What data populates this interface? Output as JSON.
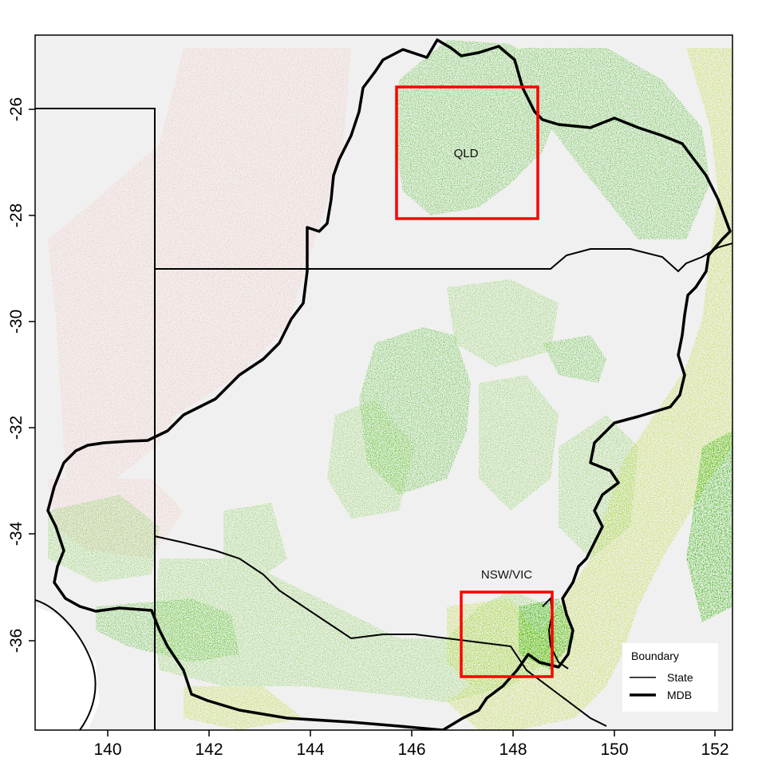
{
  "map": {
    "x_ticks": [
      "140",
      "142",
      "144",
      "146",
      "148",
      "150",
      "152"
    ],
    "y_ticks": [
      "-26",
      "-28",
      "-30",
      "-32",
      "-34",
      "-36"
    ],
    "regions": [
      {
        "label": "QLD"
      },
      {
        "label": "NSW/VIC"
      }
    ],
    "legend": {
      "title": "Boundary",
      "items": [
        {
          "label": "State"
        },
        {
          "label": "MDB"
        }
      ]
    },
    "colors": {
      "background": "#f1f0f0",
      "arid": "#f0cdc6",
      "veg_light": "#5fc81f",
      "veg_dark": "#2db300",
      "veg_yellow": "#a9d600",
      "boundary": "#000000",
      "study_area": "#ff0000"
    }
  }
}
